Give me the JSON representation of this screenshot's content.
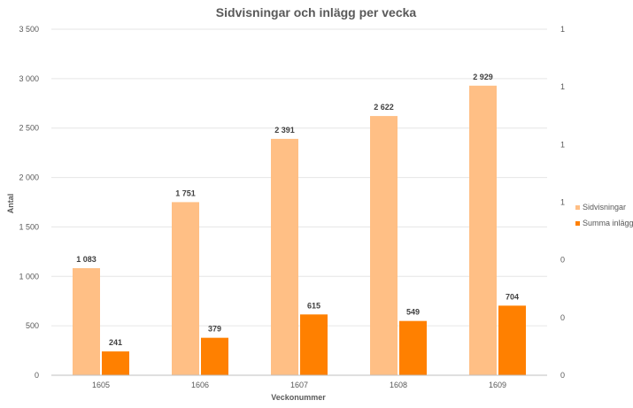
{
  "chart_data": {
    "type": "bar",
    "title": "Sidvisningar och inlägg per vecka",
    "xlabel": "Veckonummer",
    "ylabel": "Antal",
    "categories": [
      "1605",
      "1606",
      "1607",
      "1608",
      "1609"
    ],
    "series": [
      {
        "name": "Sidvisningar",
        "values": [
          1083,
          1751,
          2391,
          2622,
          2929
        ],
        "labels": [
          "1 083",
          "1 751",
          "2 391",
          "2 622",
          "2 929"
        ],
        "color": "#FFBF85"
      },
      {
        "name": "Summa inlägg",
        "values": [
          241,
          379,
          615,
          549,
          704
        ],
        "labels": [
          "241",
          "379",
          "615",
          "549",
          "704"
        ],
        "color": "#FF8000"
      }
    ],
    "ylim": [
      0,
      3500
    ],
    "yticks": [
      "0",
      "500",
      "1 000",
      "1 500",
      "2 000",
      "2 500",
      "3 000",
      "3 500"
    ],
    "ytick_values": [
      0,
      500,
      1000,
      1500,
      2000,
      2500,
      3000,
      3500
    ],
    "y2ticks": [
      "0",
      "0",
      "0",
      "1",
      "1",
      "1",
      "1"
    ],
    "grid": true,
    "legend": "right"
  }
}
